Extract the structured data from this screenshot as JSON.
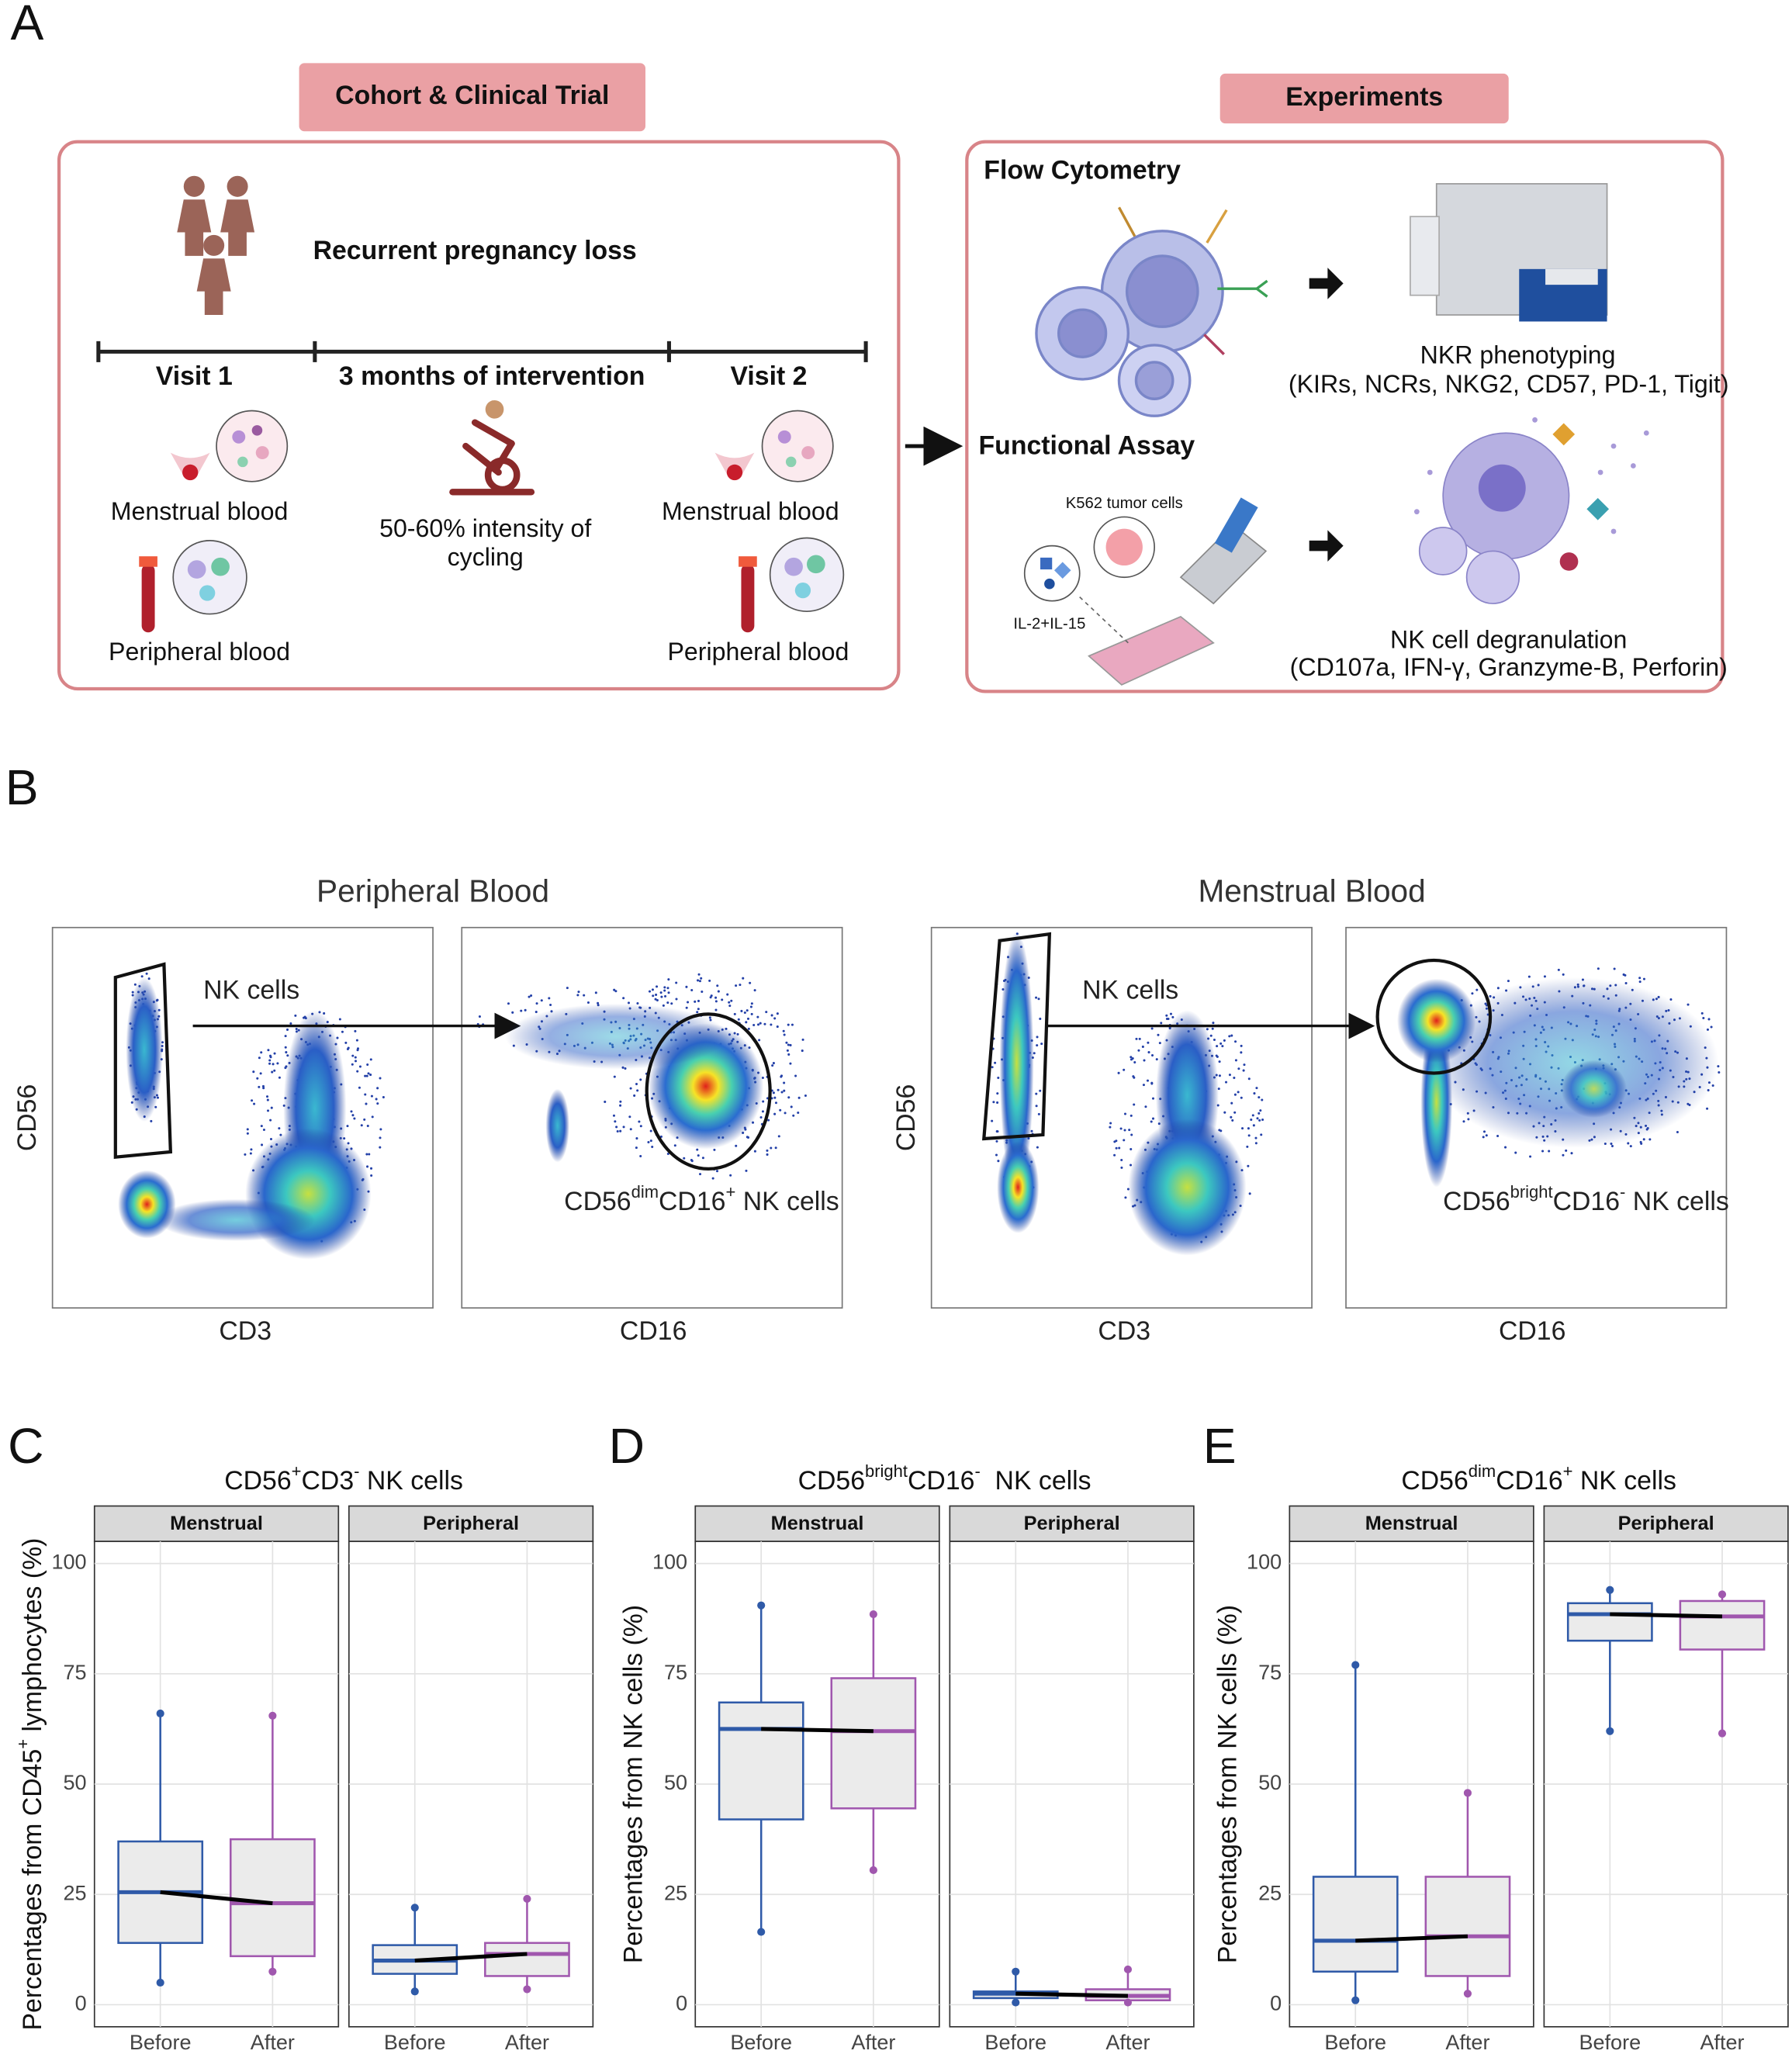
{
  "panel_a": {
    "label": "A",
    "cohort": {
      "title": "Cohort & Clinical Trial",
      "condition": "Recurrent pregnancy loss",
      "timeline": [
        "Visit 1",
        "3 months of intervention",
        "Visit 2"
      ],
      "visit1": [
        "Menstrual blood",
        "Peripheral blood"
      ],
      "intervention": [
        "50-60% intensity of",
        "cycling"
      ],
      "visit2": [
        "Menstrual blood",
        "Peripheral blood"
      ]
    },
    "experiments": {
      "title": "Experiments",
      "flow": "Flow Cytometry",
      "flow_result": [
        "NKR phenotyping",
        "(KIRs, NCRs, NKG2, CD57, PD-1, Tigit)"
      ],
      "functional": "Functional Assay",
      "target": "K562 tumor cells",
      "cytokines": "IL-2+IL-15",
      "functional_result": [
        "NK cell degranulation",
        "(CD107a, IFN-γ, Granzyme-B, Perforin)"
      ]
    }
  },
  "panel_b": {
    "label": "B",
    "groups": [
      {
        "title": "Peripheral Blood",
        "y_label": "CD56",
        "x_labels": [
          "CD3",
          "CD16"
        ],
        "gate_label": "NK cells",
        "subset_label": [
          {
            "text": "CD56"
          },
          {
            "text": "dim",
            "sup": true
          },
          {
            "text": "CD16"
          },
          {
            "text": "+",
            "sup": true
          },
          {
            "text": " NK cells"
          }
        ]
      },
      {
        "title": "Menstrual Blood",
        "y_label": "CD56",
        "x_labels": [
          "CD3",
          "CD16"
        ],
        "gate_label": "NK cells",
        "subset_label": [
          {
            "text": "CD56"
          },
          {
            "text": "bright",
            "sup": true
          },
          {
            "text": "CD16"
          },
          {
            "text": "-",
            "sup": true
          },
          {
            "text": " NK cells"
          }
        ]
      }
    ]
  },
  "panels": [
    {
      "label": "C",
      "title": [
        {
          "text": "CD56"
        },
        {
          "text": "+",
          "sup": true
        },
        {
          "text": "CD3"
        },
        {
          "text": "-",
          "sup": true
        },
        {
          "text": " NK cells"
        }
      ],
      "y_label": [
        {
          "text": "Percentages from CD45"
        },
        {
          "text": "+",
          "sup": true
        },
        {
          "text": " lymphocytes (%)"
        }
      ],
      "ylim": [
        -5,
        105
      ],
      "yticks": [
        0,
        25,
        50,
        75,
        100
      ],
      "categories": [
        "Before",
        "After"
      ],
      "colors": [
        "#2f5aa8",
        "#a057ae"
      ],
      "box_fill": "#ebebeb",
      "facets": [
        {
          "name": "Menstrual",
          "boxes": [
            {
              "min": 5,
              "q1": 14,
              "median": 25.5,
              "q3": 37,
              "max": 66
            },
            {
              "min": 7.5,
              "q1": 11,
              "median": 23,
              "q3": 37.5,
              "max": 65.5
            }
          ]
        },
        {
          "name": "Peripheral",
          "boxes": [
            {
              "min": 3,
              "q1": 7,
              "median": 10,
              "q3": 13.5,
              "max": 22
            },
            {
              "min": 3.5,
              "q1": 6.5,
              "median": 11.5,
              "q3": 14,
              "max": 24
            }
          ]
        }
      ]
    },
    {
      "label": "D",
      "title": [
        {
          "text": "CD56"
        },
        {
          "text": "bright",
          "sup": true
        },
        {
          "text": "CD16"
        },
        {
          "text": "-",
          "sup": true
        },
        {
          "text": "  NK cells"
        }
      ],
      "y_label": [
        {
          "text": "Percentages from NK cells (%)"
        }
      ],
      "ylim": [
        -5,
        105
      ],
      "yticks": [
        0,
        25,
        50,
        75,
        100
      ],
      "categories": [
        "Before",
        "After"
      ],
      "colors": [
        "#2f5aa8",
        "#a057ae"
      ],
      "box_fill": "#ebebeb",
      "facets": [
        {
          "name": "Menstrual",
          "boxes": [
            {
              "min": 16.5,
              "q1": 42,
              "median": 62.5,
              "q3": 68.5,
              "max": 90.5
            },
            {
              "min": 30.5,
              "q1": 44.5,
              "median": 62,
              "q3": 74,
              "max": 88.5
            }
          ]
        },
        {
          "name": "Peripheral",
          "boxes": [
            {
              "min": 0.5,
              "q1": 1.5,
              "median": 2.5,
              "q3": 3,
              "max": 7.5
            },
            {
              "min": 0.5,
              "q1": 1,
              "median": 2,
              "q3": 3.5,
              "max": 8
            }
          ]
        }
      ]
    },
    {
      "label": "E",
      "title": [
        {
          "text": "CD56"
        },
        {
          "text": "dim",
          "sup": true
        },
        {
          "text": "CD16"
        },
        {
          "text": "+",
          "sup": true
        },
        {
          "text": " NK cells"
        }
      ],
      "y_label": [
        {
          "text": "Percentages from NK cells (%)"
        }
      ],
      "ylim": [
        -5,
        105
      ],
      "yticks": [
        0,
        25,
        50,
        75,
        100
      ],
      "categories": [
        "Before",
        "After"
      ],
      "colors": [
        "#2f5aa8",
        "#a057ae"
      ],
      "box_fill": "#ebebeb",
      "facets": [
        {
          "name": "Menstrual",
          "boxes": [
            {
              "min": 1,
              "q1": 7.5,
              "median": 14.5,
              "q3": 29,
              "max": 77
            },
            {
              "min": 2.5,
              "q1": 6.5,
              "median": 15.5,
              "q3": 29,
              "max": 48
            }
          ]
        },
        {
          "name": "Peripheral",
          "boxes": [
            {
              "min": 62,
              "q1": 82.5,
              "median": 88.5,
              "q3": 91,
              "max": 94
            },
            {
              "min": 61.5,
              "q1": 80.5,
              "median": 88,
              "q3": 91.5,
              "max": 93
            }
          ]
        }
      ]
    }
  ]
}
